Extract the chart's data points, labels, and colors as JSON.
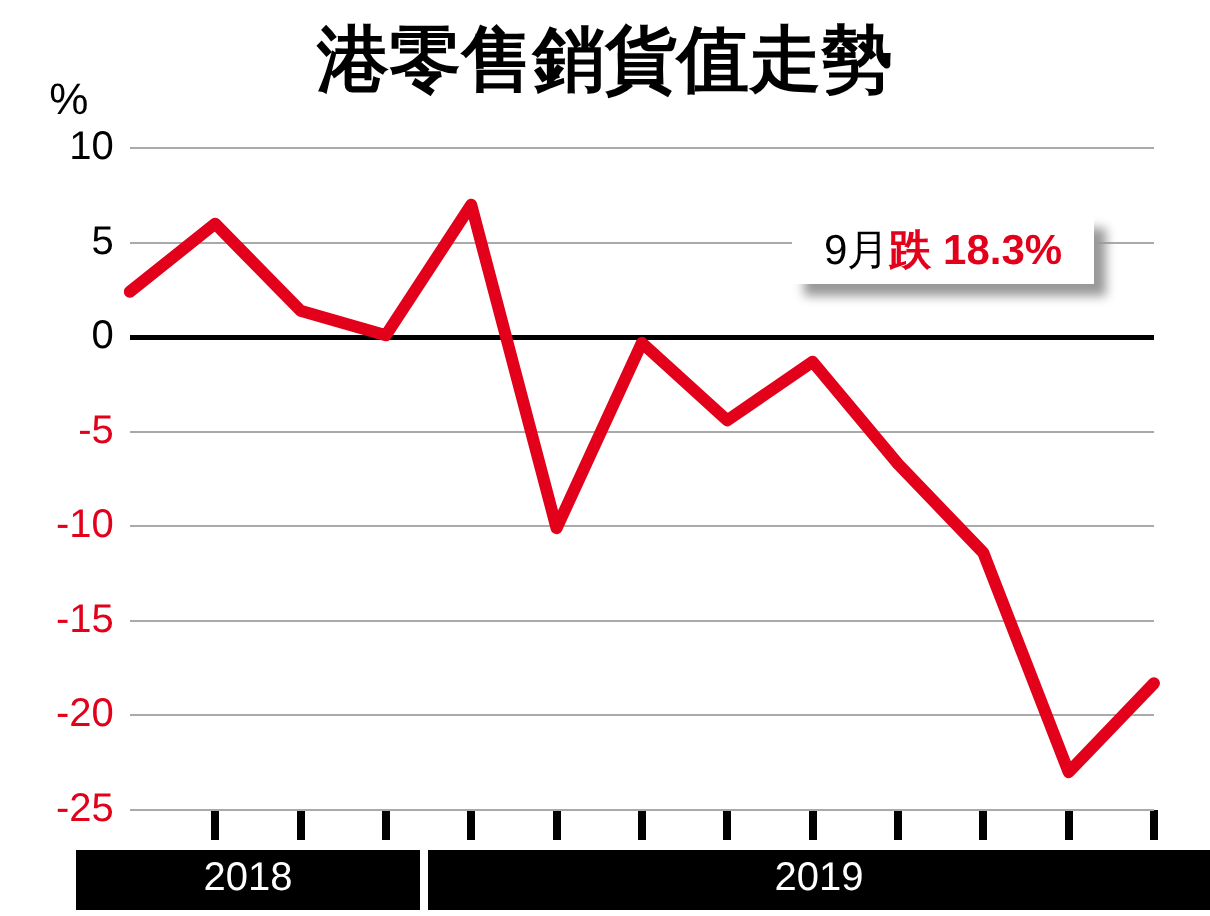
{
  "chart_data": {
    "type": "line",
    "title": "港零售銷貨值走勢",
    "ylabel": "%",
    "categories": [
      null,
      null,
      null,
      null,
      null,
      null,
      null,
      null,
      null,
      null,
      null,
      null,
      null
    ],
    "series": [
      {
        "color": "#e2001a",
        "values": [
          2.4,
          6.0,
          1.4,
          0.1,
          7.0,
          -10.1,
          -0.3,
          -4.4,
          -1.3,
          -6.7,
          -11.4,
          -23.0,
          -18.3
        ]
      }
    ],
    "ylim": [
      -25,
      10
    ],
    "yticks": [
      -25,
      -20,
      -15,
      -10,
      -5,
      0,
      5,
      10
    ],
    "grid": "y",
    "marker": "none",
    "annotations": [
      "2018",
      "2019",
      "9月跌 18.3%"
    ]
  }
}
